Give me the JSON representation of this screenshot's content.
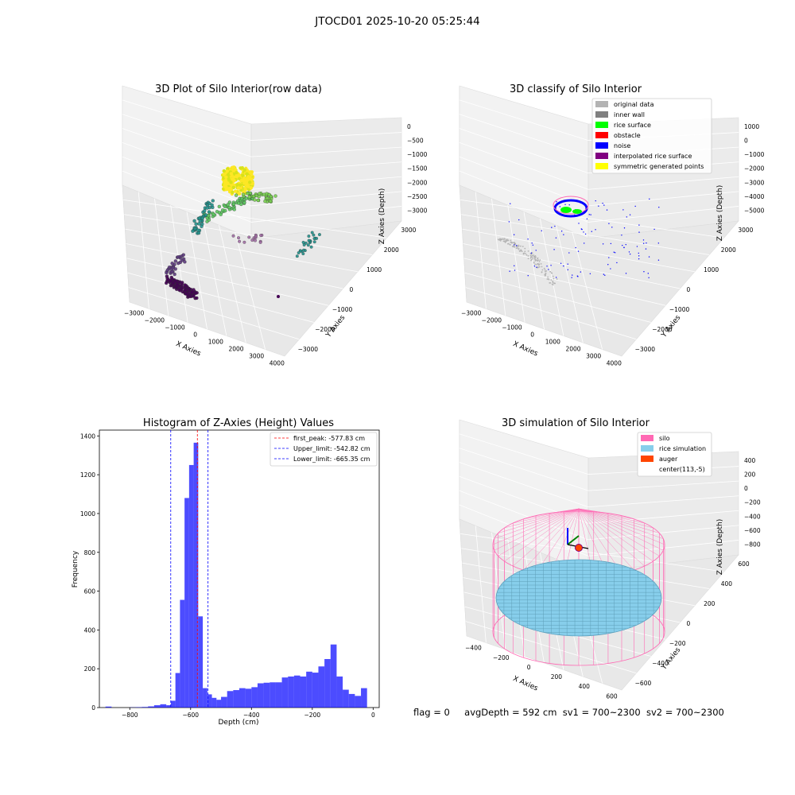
{
  "figure_title": "JTOCD01 2025-10-20 05:25:44",
  "status": {
    "flag": "flag = 0",
    "avg_depth": "avgDepth = 592 cm",
    "sv1": "sv1 = 700~2300",
    "sv2": "sv2 = 700~2300"
  },
  "chart_data": [
    {
      "type": "scatter",
      "title": "3D Plot of Silo Interior(row data)",
      "xlabel": "X Axies",
      "ylabel": "Y Axies",
      "zlabel": "Z Axies (Depth)",
      "x_ticks": [
        -3000,
        -2000,
        -1000,
        0,
        1000,
        2000,
        3000,
        4000
      ],
      "y_ticks": [
        -3000,
        -2000,
        -1000,
        0,
        1000,
        2000,
        3000
      ],
      "z_ticks": [
        -3000,
        -2500,
        -2000,
        -1500,
        -1000,
        -500,
        0
      ],
      "colormap": "viridis",
      "colors": [
        "#440154",
        "#3b528b",
        "#21918c",
        "#5ec962",
        "#fde725"
      ]
    },
    {
      "type": "scatter",
      "title": "3D classify of Silo Interior",
      "xlabel": "X Axies",
      "ylabel": "Y Axies",
      "zlabel": "Z Axies (Depth)",
      "x_ticks": [
        -3000,
        -2000,
        -1000,
        0,
        1000,
        2000,
        3000,
        4000
      ],
      "y_ticks": [
        -3000,
        -2000,
        -1000,
        0,
        1000,
        2000,
        3000
      ],
      "z_ticks": [
        -5000,
        -4000,
        -3000,
        -2000,
        -1000,
        0,
        1000
      ],
      "legend_position": "top-right",
      "legend": [
        {
          "name": "original data",
          "color": "#b3b3b3"
        },
        {
          "name": "inner wall",
          "color": "#808080"
        },
        {
          "name": "rice surface",
          "color": "#00ff00"
        },
        {
          "name": "obstacle",
          "color": "#ff0000"
        },
        {
          "name": "noise",
          "color": "#0000ff"
        },
        {
          "name": "interpolated rice surface",
          "color": "#800080"
        },
        {
          "name": "symmetric generated points",
          "color": "#ffff00"
        }
      ]
    },
    {
      "type": "bar",
      "title": "Histogram of Z-Axies (Height) Values",
      "xlabel": "Depth (cm)",
      "ylabel": "Frequency",
      "xlim": [
        -900,
        20
      ],
      "ylim": [
        0,
        1430
      ],
      "x_ticks": [
        -800,
        -600,
        -400,
        -200,
        0
      ],
      "y_ticks": [
        0,
        200,
        400,
        600,
        800,
        1000,
        1200,
        1400
      ],
      "bin_edges": [
        -880,
        -860,
        -840,
        -820,
        -800,
        -780,
        -760,
        -740,
        -720,
        -700,
        -680,
        -665,
        -650,
        -635,
        -620,
        -605,
        -590,
        -575,
        -560,
        -545,
        -530,
        -515,
        -500,
        -480,
        -460,
        -440,
        -420,
        -400,
        -380,
        -360,
        -340,
        -320,
        -300,
        -280,
        -260,
        -240,
        -220,
        -200,
        -180,
        -160,
        -140,
        -120,
        -100,
        -80,
        -60,
        -40,
        -20,
        0
      ],
      "values": [
        5,
        0,
        0,
        0,
        1,
        2,
        3,
        6,
        12,
        17,
        12,
        35,
        178,
        555,
        1080,
        1250,
        1365,
        470,
        100,
        68,
        50,
        40,
        55,
        85,
        90,
        100,
        97,
        105,
        125,
        128,
        130,
        130,
        155,
        160,
        165,
        160,
        185,
        180,
        212,
        250,
        325,
        160,
        92,
        70,
        60,
        100,
        0
      ],
      "bar_color": "#0000ff",
      "bar_opacity": 0.7,
      "legend_position": "top-right",
      "reference_lines": [
        {
          "name": "first_peak: -577.83 cm",
          "x": -577.83,
          "color": "#ff0000"
        },
        {
          "name": "Upper_limit: -542.82 cm",
          "x": -542.82,
          "color": "#0000ff"
        },
        {
          "name": "Lower_limit: -665.35 cm",
          "x": -665.35,
          "color": "#0000ff"
        }
      ]
    },
    {
      "type": "scatter",
      "title": "3D simulation of Silo Interior",
      "xlabel": "X Axies",
      "ylabel": "Y Axies",
      "zlabel": "Z Axies (Depth)",
      "x_ticks": [
        -400,
        -200,
        0,
        200,
        400,
        600
      ],
      "y_ticks": [
        -600,
        -400,
        -200,
        0,
        200,
        400,
        600
      ],
      "z_ticks": [
        -800,
        -600,
        -400,
        -200,
        0,
        200,
        400
      ],
      "legend_position": "top-right",
      "legend": [
        {
          "name": "silo",
          "color": "#ff69b4"
        },
        {
          "name": "rice simulation",
          "color": "#87ceeb"
        },
        {
          "name": "auger",
          "color": "#ff4500"
        },
        {
          "name": "center(113,-5)",
          "color": "#ffffff"
        }
      ]
    }
  ]
}
